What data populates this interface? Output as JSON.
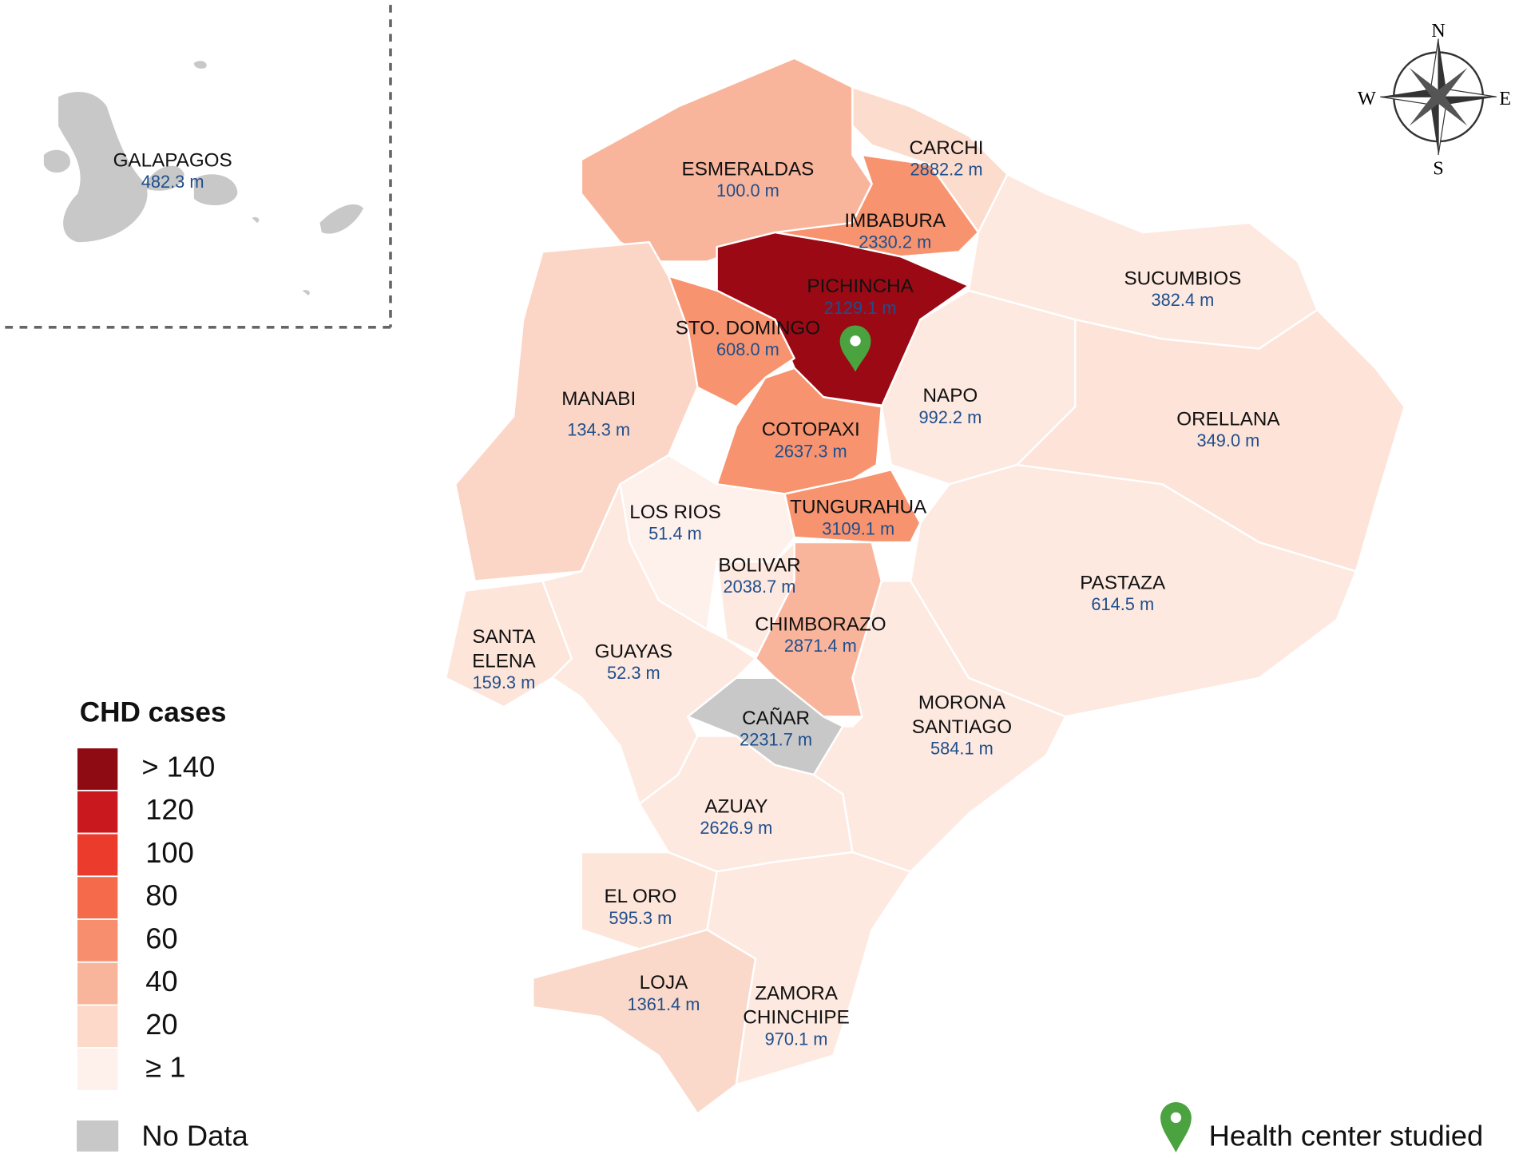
{
  "legend_title": "CHD cases",
  "legend": [
    {
      "label": "> 140",
      "color": "#8e0b13"
    },
    {
      "label": "120",
      "color": "#c9181e"
    },
    {
      "label": "100",
      "color": "#ea3b2c"
    },
    {
      "label": "80",
      "color": "#f66a4c"
    },
    {
      "label": "60",
      "color": "#f78e6e"
    },
    {
      "label": "40",
      "color": "#f9b59c"
    },
    {
      "label": "20",
      "color": "#fcd9c9"
    },
    {
      "label": "≥ 1",
      "color": "#fef0ea"
    }
  ],
  "no_data": {
    "label": "No Data",
    "color": "#c8c8c8"
  },
  "marker_legend": "Health center studied",
  "compass": {
    "n": "N",
    "e": "E",
    "s": "S",
    "w": "W"
  },
  "provinces": [
    {
      "name": [
        "GALAPAGOS"
      ],
      "altitude": "482.3 m",
      "color": "#c8c8c8"
    },
    {
      "name": [
        "ESMERALDAS"
      ],
      "altitude": "100.0 m",
      "color": "#f9b59c"
    },
    {
      "name": [
        "CARCHI"
      ],
      "altitude": "2882.2 m",
      "color": "#fcdccd"
    },
    {
      "name": [
        "IMBABURA"
      ],
      "altitude": "2330.2 m",
      "color": "#f7946f"
    },
    {
      "name": [
        "SUCUMBIOS"
      ],
      "altitude": "382.4 m",
      "color": "#fde9e0"
    },
    {
      "name": [
        "PICHINCHA"
      ],
      "altitude": "2129.1 m",
      "color": "#9b0a14"
    },
    {
      "name": [
        "STO. DOMINGO"
      ],
      "altitude": "608.0 m",
      "color": "#f7946f"
    },
    {
      "name": [
        "MANABI"
      ],
      "altitude": "134.3 m",
      "color": "#fbd6c6"
    },
    {
      "name": [
        "NAPO"
      ],
      "altitude": "992.2 m",
      "color": "#fde9e0"
    },
    {
      "name": [
        "ORELLANA"
      ],
      "altitude": "349.0 m",
      "color": "#fde3d8"
    },
    {
      "name": [
        "COTOPAXI"
      ],
      "altitude": "2637.3 m",
      "color": "#f7946f"
    },
    {
      "name": [
        "TUNGURAHUA"
      ],
      "altitude": "3109.1  m",
      "color": "#f7946f"
    },
    {
      "name": [
        "LOS RIOS"
      ],
      "altitude": "51.4 m",
      "color": "#fef0ea"
    },
    {
      "name": [
        "BOLIVAR"
      ],
      "altitude": "2038.7 m",
      "color": "#fde9e0"
    },
    {
      "name": [
        "PASTAZA"
      ],
      "altitude": "614.5 m",
      "color": "#fde9e0"
    },
    {
      "name": [
        "CHIMBORAZO"
      ],
      "altitude": "2871.4 m",
      "color": "#f9b59c"
    },
    {
      "name": [
        "SANTA",
        "ELENA"
      ],
      "altitude": "159.3 m",
      "color": "#fde5da"
    },
    {
      "name": [
        "GUAYAS"
      ],
      "altitude": "52.3 m",
      "color": "#fde9e0"
    },
    {
      "name": [
        "MORONA",
        "SANTIAGO"
      ],
      "altitude": "584.1 m",
      "color": "#fde9e0"
    },
    {
      "name": [
        "CAÑAR"
      ],
      "altitude": "2231.7 m",
      "color": "#c8c8c8"
    },
    {
      "name": [
        "AZUAY"
      ],
      "altitude": "2626.9 m",
      "color": "#fde9e0"
    },
    {
      "name": [
        "EL ORO"
      ],
      "altitude": "595.3 m",
      "color": "#fde5da"
    },
    {
      "name": [
        "LOJA"
      ],
      "altitude": "1361.4 m",
      "color": "#fbd9ca"
    },
    {
      "name": [
        "ZAMORA",
        "CHINCHIPE"
      ],
      "altitude": "970.1 m",
      "color": "#fde9e0"
    }
  ]
}
